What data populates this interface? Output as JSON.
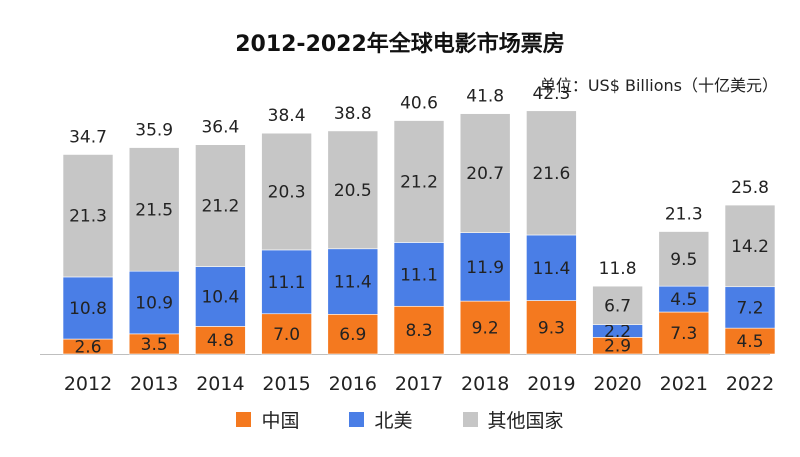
{
  "title": "2012-2022年全球电影市场票房",
  "unit_label": "单位：US$ Billions（十亿美元）",
  "colors": {
    "china": "#f4791f",
    "north_america": "#4a7ee6",
    "others": "#c6c6c6"
  },
  "chart_data": {
    "type": "bar",
    "stacked": true,
    "categories": [
      "2012",
      "2013",
      "2014",
      "2015",
      "2016",
      "2017",
      "2018",
      "2019",
      "2020",
      "2021",
      "2022"
    ],
    "series": [
      {
        "name": "中国",
        "values": [
          "2.6",
          "3.5",
          "4.8",
          "7.0",
          "6.9",
          "8.3",
          "9.2",
          "9.3",
          "2.9",
          "7.3",
          "4.5"
        ]
      },
      {
        "name": "北美",
        "values": [
          "10.8",
          "10.9",
          "10.4",
          "11.1",
          "11.4",
          "11.1",
          "11.9",
          "11.4",
          "2.2",
          "4.5",
          "7.2"
        ]
      },
      {
        "name": "其他国家",
        "values": [
          "21.3",
          "21.5",
          "21.2",
          "20.3",
          "20.5",
          "21.2",
          "20.7",
          "21.6",
          "6.7",
          "9.5",
          "14.2"
        ]
      }
    ],
    "totals": [
      "34.7",
      "35.9",
      "36.4",
      "38.4",
      "38.8",
      "40.6",
      "41.8",
      "42.3",
      "11.8",
      "21.3",
      "25.8"
    ],
    "ylim": [
      0,
      45
    ],
    "legend_position": "bottom"
  }
}
